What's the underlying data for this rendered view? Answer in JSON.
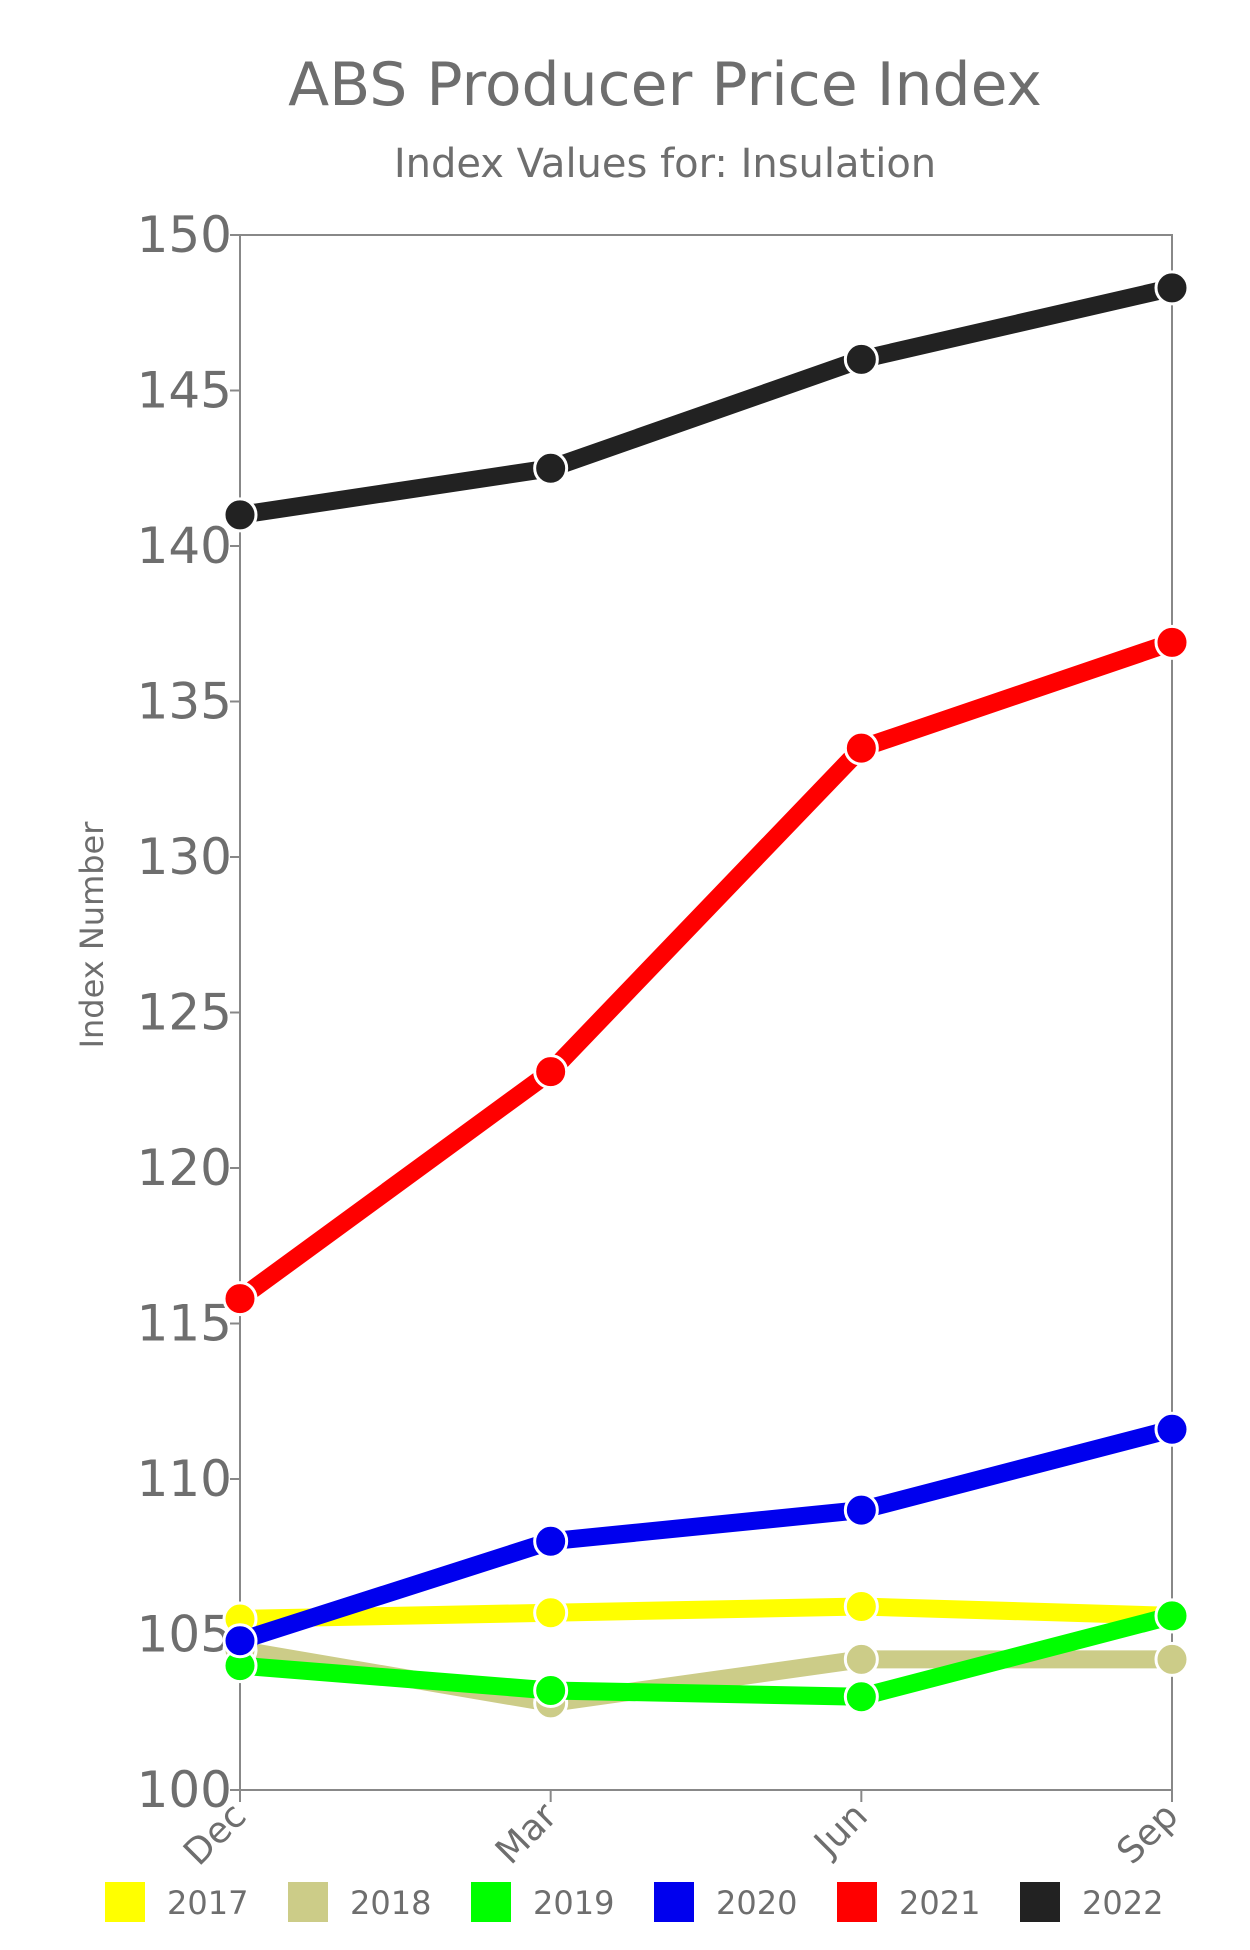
{
  "chart_data": {
    "type": "line",
    "title": "ABS Producer Price Index",
    "subtitle": "Index Values for: Insulation",
    "xlabel": "",
    "ylabel": "Index Number",
    "ylim": [
      100,
      150
    ],
    "yticks": [
      "100",
      "105",
      "110",
      "115",
      "120",
      "125",
      "130",
      "135",
      "140",
      "145",
      "150"
    ],
    "categories": [
      "Dec",
      "Mar",
      "Jun",
      "Sep"
    ],
    "grid": false,
    "legend_position": "bottom",
    "series": [
      {
        "name": "2017",
        "color": "#ffff00",
        "values": [
          105.5,
          105.7,
          105.9,
          105.6
        ]
      },
      {
        "name": "2018",
        "color": "#cccc88",
        "values": [
          104.5,
          102.8,
          104.2,
          104.2
        ]
      },
      {
        "name": "2019",
        "color": "#00ff00",
        "values": [
          104.0,
          103.2,
          103.0,
          105.6
        ]
      },
      {
        "name": "2020",
        "color": "#0000ee",
        "values": [
          104.8,
          108.0,
          109.0,
          111.6
        ]
      },
      {
        "name": "2021",
        "color": "#ff0000",
        "values": [
          115.8,
          123.1,
          133.5,
          136.9
        ]
      },
      {
        "name": "2022",
        "color": "#222222",
        "values": [
          141.0,
          142.5,
          146.0,
          148.3
        ]
      }
    ]
  }
}
